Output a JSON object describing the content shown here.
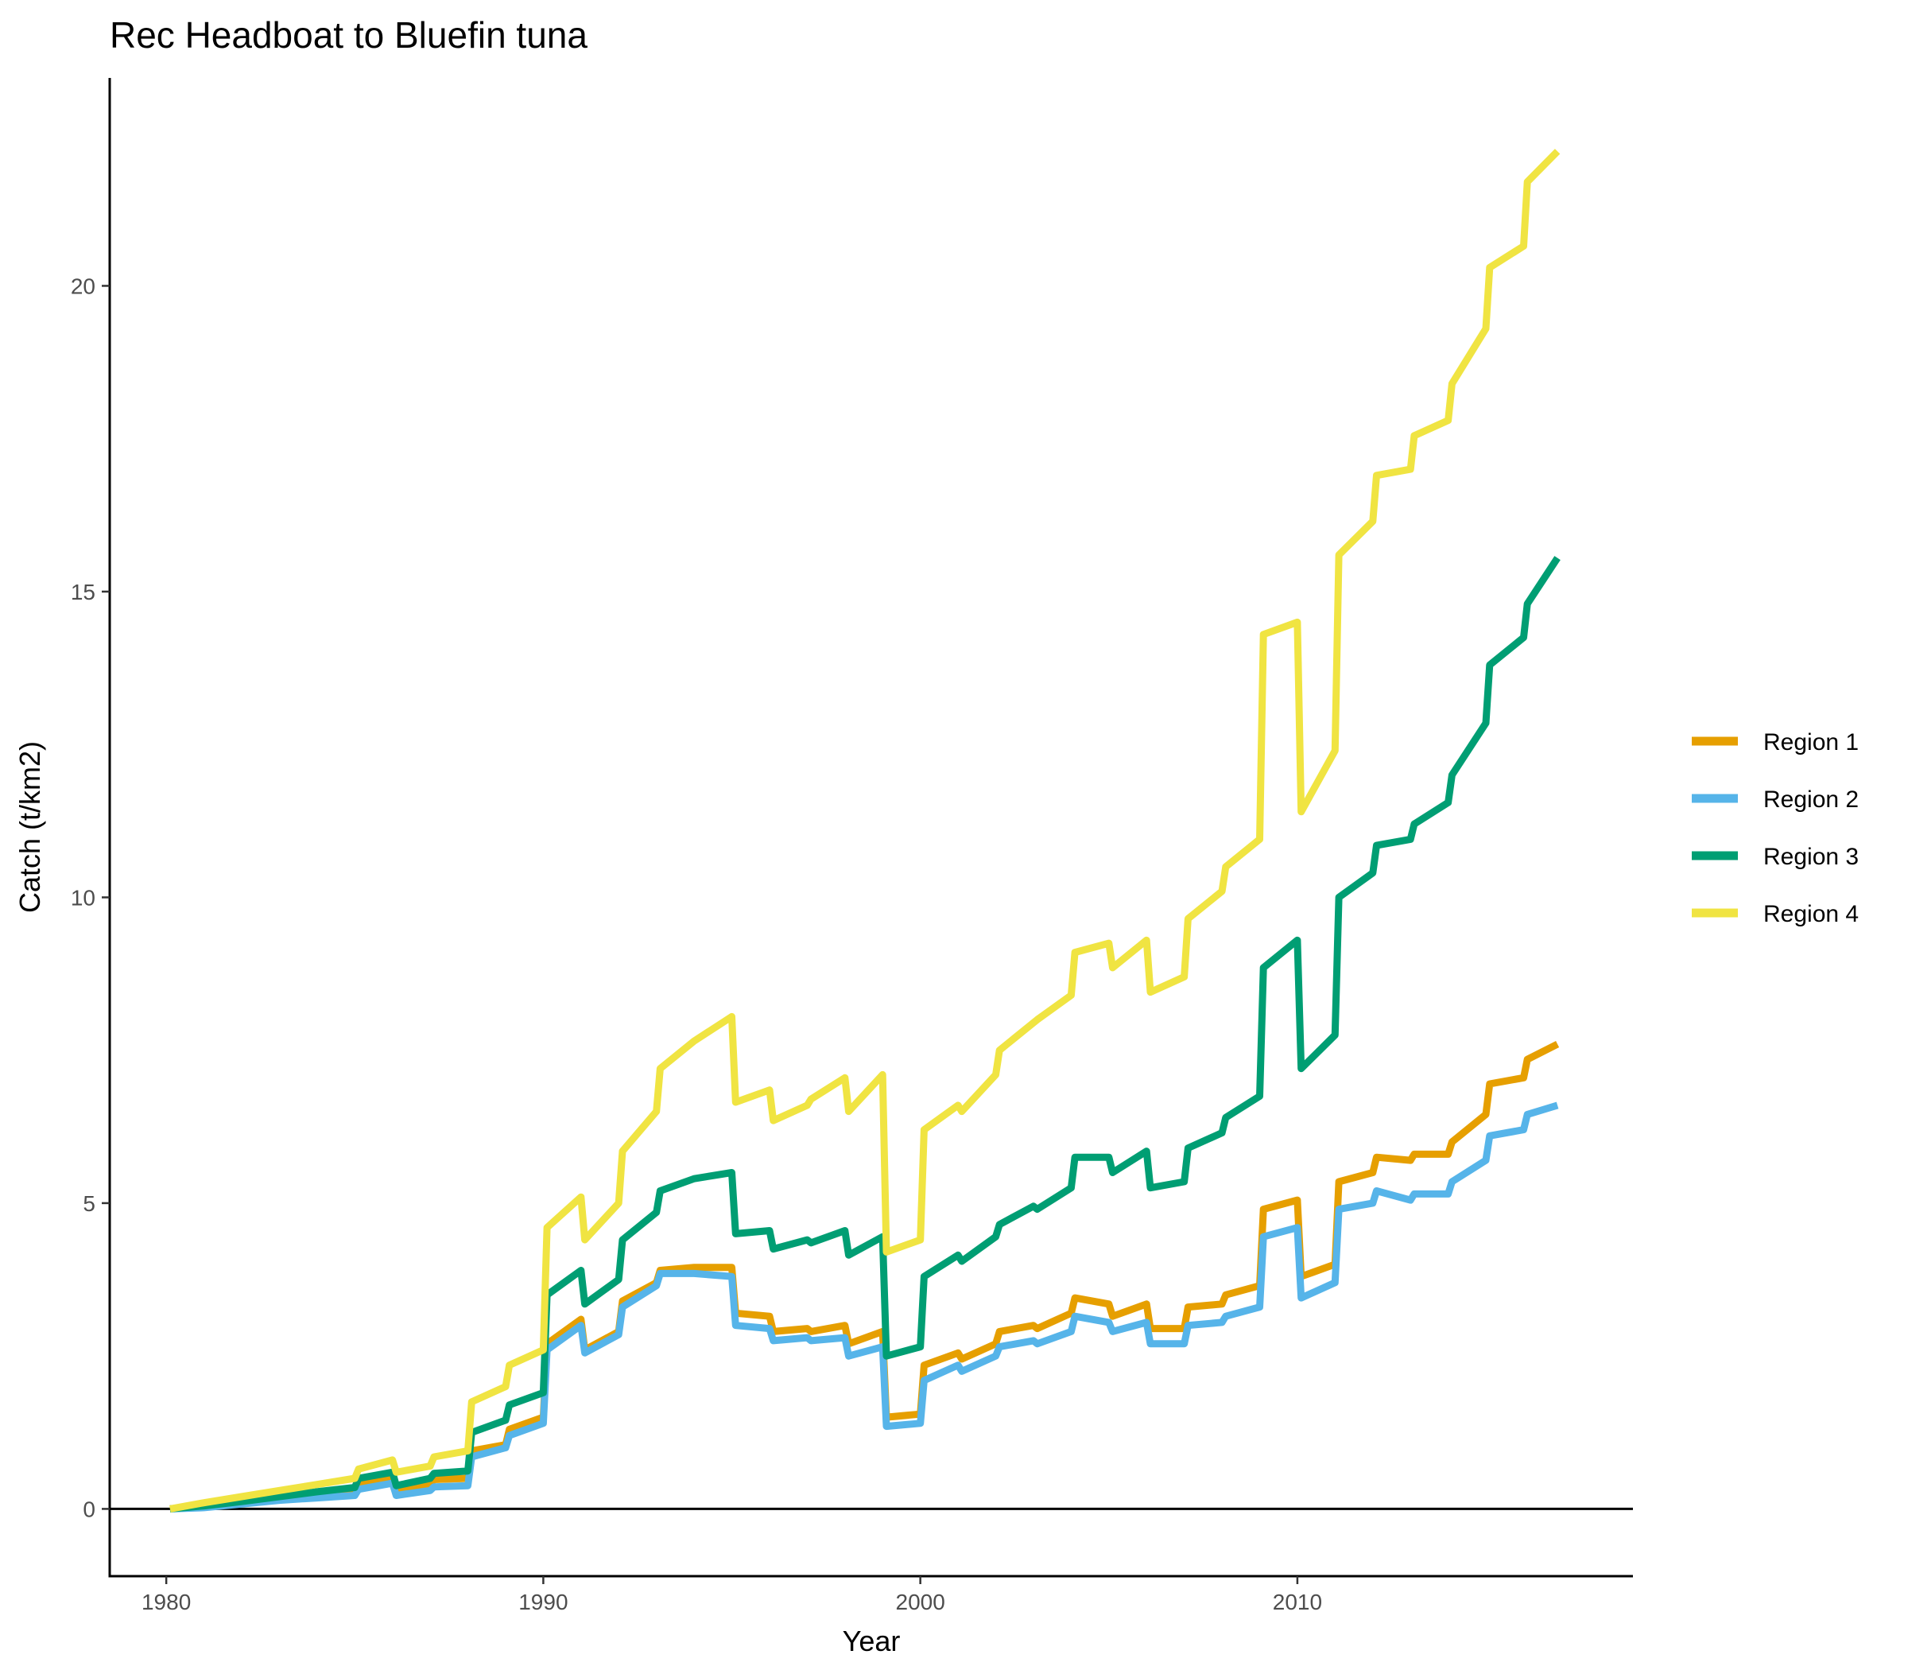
{
  "chart_data": {
    "type": "line",
    "title": "Rec Headboat to Bluefin tuna",
    "xlabel": "Year",
    "ylabel": "Catch (t/km2)",
    "xlim": [
      1978.5,
      2018.9
    ],
    "ylim": [
      -1.1,
      23.4
    ],
    "x_ticks": [
      1980,
      1990,
      2000,
      2010
    ],
    "x_tick_labels": [
      "1980",
      "1990",
      "2000",
      "2010"
    ],
    "y_ticks": [
      0,
      5,
      10,
      15,
      20
    ],
    "y_tick_labels": [
      "0",
      "5",
      "10",
      "15",
      "20"
    ],
    "zero_line": 0,
    "grid": false,
    "legend_position": "right",
    "series": [
      {
        "name": "Region 1",
        "color": "#E69F00",
        "points": [
          [
            1980.1,
            0.0
          ],
          [
            1981.0,
            0.05
          ],
          [
            1982.0,
            0.12
          ],
          [
            1983.0,
            0.2
          ],
          [
            1984.0,
            0.25
          ],
          [
            1985.0,
            0.3
          ],
          [
            1985.1,
            0.4
          ],
          [
            1986.0,
            0.5
          ],
          [
            1986.1,
            0.3
          ],
          [
            1987.0,
            0.4
          ],
          [
            1987.1,
            0.48
          ],
          [
            1988.0,
            0.5
          ],
          [
            1988.1,
            0.95
          ],
          [
            1989.0,
            1.05
          ],
          [
            1989.1,
            1.3
          ],
          [
            1990.0,
            1.5
          ],
          [
            1990.1,
            2.7
          ],
          [
            1991.0,
            3.1
          ],
          [
            1991.1,
            2.6
          ],
          [
            1992.0,
            2.9
          ],
          [
            1992.1,
            3.4
          ],
          [
            1993.0,
            3.7
          ],
          [
            1993.1,
            3.9
          ],
          [
            1994.0,
            3.95
          ],
          [
            1995.0,
            3.95
          ],
          [
            1995.1,
            3.2
          ],
          [
            1996.0,
            3.15
          ],
          [
            1996.1,
            2.9
          ],
          [
            1997.0,
            2.95
          ],
          [
            1997.1,
            2.9
          ],
          [
            1998.0,
            3.0
          ],
          [
            1998.1,
            2.7
          ],
          [
            1999.0,
            2.9
          ],
          [
            1999.1,
            1.5
          ],
          [
            2000.0,
            1.55
          ],
          [
            2000.1,
            2.35
          ],
          [
            2001.0,
            2.55
          ],
          [
            2001.1,
            2.45
          ],
          [
            2002.0,
            2.7
          ],
          [
            2002.1,
            2.9
          ],
          [
            2003.0,
            3.0
          ],
          [
            2003.1,
            2.95
          ],
          [
            2004.0,
            3.2
          ],
          [
            2004.1,
            3.45
          ],
          [
            2005.0,
            3.35
          ],
          [
            2005.1,
            3.15
          ],
          [
            2006.0,
            3.35
          ],
          [
            2006.1,
            2.95
          ],
          [
            2007.0,
            2.95
          ],
          [
            2007.1,
            3.3
          ],
          [
            2008.0,
            3.35
          ],
          [
            2008.1,
            3.5
          ],
          [
            2009.0,
            3.65
          ],
          [
            2009.1,
            4.9
          ],
          [
            2010.0,
            5.05
          ],
          [
            2010.1,
            3.8
          ],
          [
            2011.0,
            4.0
          ],
          [
            2011.1,
            5.35
          ],
          [
            2012.0,
            5.5
          ],
          [
            2012.1,
            5.75
          ],
          [
            2013.0,
            5.7
          ],
          [
            2013.1,
            5.8
          ],
          [
            2014.0,
            5.8
          ],
          [
            2014.1,
            6.0
          ],
          [
            2015.0,
            6.45
          ],
          [
            2015.1,
            6.95
          ],
          [
            2016.0,
            7.05
          ],
          [
            2016.1,
            7.35
          ],
          [
            2016.9,
            7.6
          ]
        ]
      },
      {
        "name": "Region 2",
        "color": "#56B4E9",
        "points": [
          [
            1980.1,
            0.0
          ],
          [
            1981.0,
            0.02
          ],
          [
            1982.0,
            0.08
          ],
          [
            1983.0,
            0.14
          ],
          [
            1984.0,
            0.18
          ],
          [
            1985.0,
            0.22
          ],
          [
            1985.1,
            0.32
          ],
          [
            1986.0,
            0.42
          ],
          [
            1986.1,
            0.22
          ],
          [
            1987.0,
            0.3
          ],
          [
            1987.1,
            0.36
          ],
          [
            1988.0,
            0.38
          ],
          [
            1988.1,
            0.85
          ],
          [
            1989.0,
            1.0
          ],
          [
            1989.1,
            1.2
          ],
          [
            1990.0,
            1.4
          ],
          [
            1990.1,
            2.6
          ],
          [
            1991.0,
            3.0
          ],
          [
            1991.1,
            2.55
          ],
          [
            1992.0,
            2.85
          ],
          [
            1992.1,
            3.3
          ],
          [
            1993.0,
            3.65
          ],
          [
            1993.1,
            3.85
          ],
          [
            1994.0,
            3.85
          ],
          [
            1995.0,
            3.8
          ],
          [
            1995.1,
            3.0
          ],
          [
            1996.0,
            2.95
          ],
          [
            1996.1,
            2.75
          ],
          [
            1997.0,
            2.8
          ],
          [
            1997.1,
            2.75
          ],
          [
            1998.0,
            2.8
          ],
          [
            1998.1,
            2.5
          ],
          [
            1999.0,
            2.65
          ],
          [
            1999.1,
            1.35
          ],
          [
            2000.0,
            1.4
          ],
          [
            2000.1,
            2.1
          ],
          [
            2001.0,
            2.35
          ],
          [
            2001.1,
            2.25
          ],
          [
            2002.0,
            2.5
          ],
          [
            2002.1,
            2.65
          ],
          [
            2003.0,
            2.75
          ],
          [
            2003.1,
            2.7
          ],
          [
            2004.0,
            2.9
          ],
          [
            2004.1,
            3.15
          ],
          [
            2005.0,
            3.05
          ],
          [
            2005.1,
            2.9
          ],
          [
            2006.0,
            3.05
          ],
          [
            2006.1,
            2.7
          ],
          [
            2007.0,
            2.7
          ],
          [
            2007.1,
            3.0
          ],
          [
            2008.0,
            3.05
          ],
          [
            2008.1,
            3.15
          ],
          [
            2009.0,
            3.3
          ],
          [
            2009.1,
            4.45
          ],
          [
            2010.0,
            4.6
          ],
          [
            2010.1,
            3.45
          ],
          [
            2011.0,
            3.7
          ],
          [
            2011.1,
            4.9
          ],
          [
            2012.0,
            5.0
          ],
          [
            2012.1,
            5.2
          ],
          [
            2013.0,
            5.05
          ],
          [
            2013.1,
            5.15
          ],
          [
            2014.0,
            5.15
          ],
          [
            2014.1,
            5.35
          ],
          [
            2015.0,
            5.7
          ],
          [
            2015.1,
            6.1
          ],
          [
            2016.0,
            6.2
          ],
          [
            2016.1,
            6.45
          ],
          [
            2016.9,
            6.6
          ]
        ]
      },
      {
        "name": "Region 3",
        "color": "#009E73",
        "points": [
          [
            1980.1,
            0.0
          ],
          [
            1981.0,
            0.05
          ],
          [
            1982.0,
            0.12
          ],
          [
            1983.0,
            0.2
          ],
          [
            1984.0,
            0.28
          ],
          [
            1985.0,
            0.35
          ],
          [
            1985.1,
            0.5
          ],
          [
            1986.0,
            0.6
          ],
          [
            1986.1,
            0.38
          ],
          [
            1987.0,
            0.5
          ],
          [
            1987.1,
            0.58
          ],
          [
            1988.0,
            0.62
          ],
          [
            1988.1,
            1.25
          ],
          [
            1989.0,
            1.45
          ],
          [
            1989.1,
            1.7
          ],
          [
            1990.0,
            1.9
          ],
          [
            1990.1,
            3.5
          ],
          [
            1991.0,
            3.9
          ],
          [
            1991.1,
            3.35
          ],
          [
            1992.0,
            3.75
          ],
          [
            1992.1,
            4.4
          ],
          [
            1993.0,
            4.85
          ],
          [
            1993.1,
            5.2
          ],
          [
            1994.0,
            5.4
          ],
          [
            1995.0,
            5.5
          ],
          [
            1995.1,
            4.5
          ],
          [
            1996.0,
            4.55
          ],
          [
            1996.1,
            4.25
          ],
          [
            1997.0,
            4.4
          ],
          [
            1997.1,
            4.35
          ],
          [
            1998.0,
            4.55
          ],
          [
            1998.1,
            4.15
          ],
          [
            1999.0,
            4.45
          ],
          [
            1999.1,
            2.5
          ],
          [
            2000.0,
            2.65
          ],
          [
            2000.1,
            3.8
          ],
          [
            2001.0,
            4.15
          ],
          [
            2001.1,
            4.05
          ],
          [
            2002.0,
            4.45
          ],
          [
            2002.1,
            4.65
          ],
          [
            2003.0,
            4.95
          ],
          [
            2003.1,
            4.9
          ],
          [
            2004.0,
            5.25
          ],
          [
            2004.1,
            5.75
          ],
          [
            2005.0,
            5.75
          ],
          [
            2005.1,
            5.5
          ],
          [
            2006.0,
            5.85
          ],
          [
            2006.1,
            5.25
          ],
          [
            2007.0,
            5.35
          ],
          [
            2007.1,
            5.9
          ],
          [
            2008.0,
            6.15
          ],
          [
            2008.1,
            6.4
          ],
          [
            2009.0,
            6.75
          ],
          [
            2009.1,
            8.85
          ],
          [
            2010.0,
            9.3
          ],
          [
            2010.1,
            7.2
          ],
          [
            2011.0,
            7.75
          ],
          [
            2011.1,
            10.0
          ],
          [
            2012.0,
            10.4
          ],
          [
            2012.1,
            10.85
          ],
          [
            2013.0,
            10.95
          ],
          [
            2013.1,
            11.2
          ],
          [
            2014.0,
            11.55
          ],
          [
            2014.1,
            12.0
          ],
          [
            2015.0,
            12.85
          ],
          [
            2015.1,
            13.8
          ],
          [
            2016.0,
            14.25
          ],
          [
            2016.1,
            14.8
          ],
          [
            2016.9,
            15.55
          ]
        ]
      },
      {
        "name": "Region 4",
        "color": "#F0E442",
        "points": [
          [
            1980.1,
            0.0
          ],
          [
            1981.0,
            0.1
          ],
          [
            1982.0,
            0.2
          ],
          [
            1983.0,
            0.3
          ],
          [
            1984.0,
            0.4
          ],
          [
            1985.0,
            0.5
          ],
          [
            1985.1,
            0.65
          ],
          [
            1986.0,
            0.8
          ],
          [
            1986.1,
            0.6
          ],
          [
            1987.0,
            0.7
          ],
          [
            1987.1,
            0.85
          ],
          [
            1988.0,
            0.95
          ],
          [
            1988.1,
            1.75
          ],
          [
            1989.0,
            2.0
          ],
          [
            1989.1,
            2.35
          ],
          [
            1990.0,
            2.6
          ],
          [
            1990.1,
            4.6
          ],
          [
            1991.0,
            5.1
          ],
          [
            1991.1,
            4.4
          ],
          [
            1992.0,
            5.0
          ],
          [
            1992.1,
            5.85
          ],
          [
            1993.0,
            6.5
          ],
          [
            1993.1,
            7.2
          ],
          [
            1994.0,
            7.65
          ],
          [
            1995.0,
            8.05
          ],
          [
            1995.1,
            6.65
          ],
          [
            1996.0,
            6.85
          ],
          [
            1996.1,
            6.35
          ],
          [
            1997.0,
            6.6
          ],
          [
            1997.1,
            6.7
          ],
          [
            1998.0,
            7.05
          ],
          [
            1998.1,
            6.5
          ],
          [
            1999.0,
            7.1
          ],
          [
            1999.1,
            4.2
          ],
          [
            2000.0,
            4.4
          ],
          [
            2000.1,
            6.2
          ],
          [
            2001.0,
            6.6
          ],
          [
            2001.1,
            6.5
          ],
          [
            2002.0,
            7.1
          ],
          [
            2002.1,
            7.5
          ],
          [
            2003.0,
            7.95
          ],
          [
            2003.1,
            8.0
          ],
          [
            2004.0,
            8.4
          ],
          [
            2004.1,
            9.1
          ],
          [
            2005.0,
            9.25
          ],
          [
            2005.1,
            8.85
          ],
          [
            2006.0,
            9.3
          ],
          [
            2006.1,
            8.45
          ],
          [
            2007.0,
            8.7
          ],
          [
            2007.1,
            9.65
          ],
          [
            2008.0,
            10.1
          ],
          [
            2008.1,
            10.5
          ],
          [
            2009.0,
            10.95
          ],
          [
            2009.1,
            14.3
          ],
          [
            2010.0,
            14.5
          ],
          [
            2010.1,
            11.4
          ],
          [
            2011.0,
            12.4
          ],
          [
            2011.1,
            15.6
          ],
          [
            2012.0,
            16.15
          ],
          [
            2012.1,
            16.9
          ],
          [
            2013.0,
            17.0
          ],
          [
            2013.1,
            17.55
          ],
          [
            2014.0,
            17.8
          ],
          [
            2014.1,
            18.4
          ],
          [
            2015.0,
            19.3
          ],
          [
            2015.1,
            20.3
          ],
          [
            2016.0,
            20.65
          ],
          [
            2016.1,
            21.7
          ],
          [
            2016.9,
            22.2
          ]
        ]
      }
    ]
  }
}
